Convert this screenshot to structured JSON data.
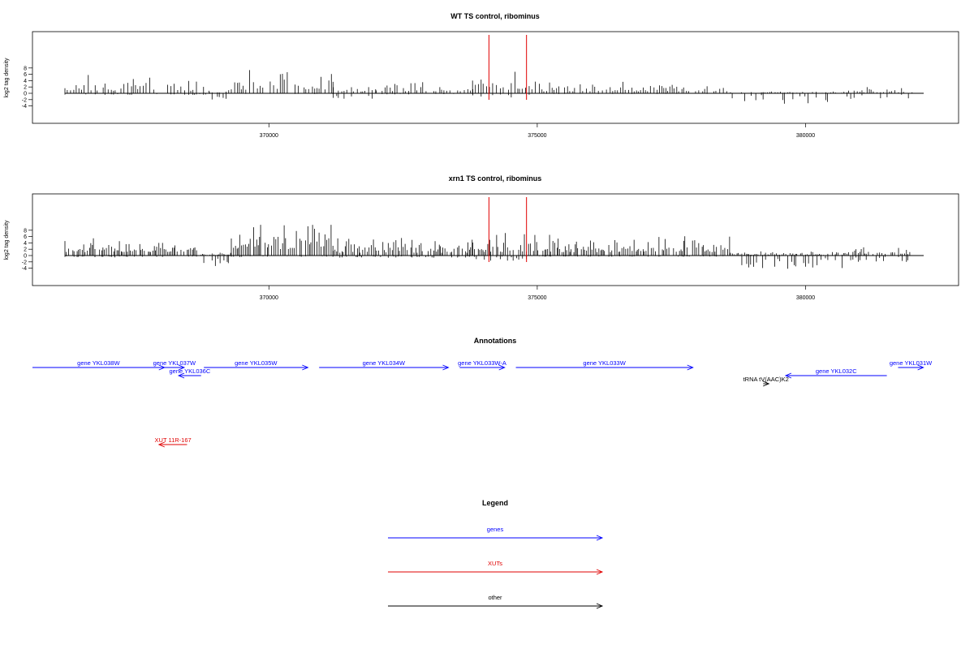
{
  "chart_data": [
    {
      "type": "bar",
      "title": "WT TS control, ribominus",
      "ylabel": "log2 tag density",
      "xlim": [
        366200,
        382200
      ],
      "ylim": [
        -5,
        10
      ],
      "yticks": [
        -4,
        -2,
        0,
        2,
        4,
        6,
        8
      ],
      "xticks": [
        370000,
        375000,
        380000
      ],
      "marker_color": "#e00000",
      "markers": [
        374100,
        374800
      ],
      "profile": {
        "base_spacing": 50,
        "segments": [
          {
            "x": [
              366200,
              368900
            ],
            "forward_amp": 3.2,
            "reverse_amp": 0.4
          },
          {
            "x": [
              368900,
              369300
            ],
            "forward_amp": 0.8,
            "reverse_amp": 1.8
          },
          {
            "x": [
              369300,
              371200
            ],
            "forward_amp": 4.5,
            "reverse_amp": 0.2
          },
          {
            "x": [
              371200,
              372000
            ],
            "forward_amp": 1.5,
            "reverse_amp": 1.5
          },
          {
            "x": [
              372000,
              373800
            ],
            "forward_amp": 2.5,
            "reverse_amp": 0.3
          },
          {
            "x": [
              373800,
              374900
            ],
            "forward_amp": 4.0,
            "reverse_amp": 1.2
          },
          {
            "x": [
              374900,
              378600
            ],
            "forward_amp": 2.4,
            "reverse_amp": 0.2
          },
          {
            "x": [
              378600,
              380800
            ],
            "forward_amp": 0.4,
            "reverse_amp": 2.8
          },
          {
            "x": [
              380800,
              382000
            ],
            "forward_amp": 1.2,
            "reverse_amp": 1.6
          }
        ]
      }
    },
    {
      "type": "bar",
      "title": "xrn1 TS control, ribominus",
      "ylabel": "log2 tag density",
      "xlim": [
        366200,
        382200
      ],
      "ylim": [
        -5,
        10
      ],
      "yticks": [
        -4,
        -2,
        0,
        2,
        4,
        6,
        8
      ],
      "xticks": [
        370000,
        375000,
        380000
      ],
      "marker_color": "#e00000",
      "markers": [
        374100,
        374800
      ],
      "profile": {
        "base_spacing": 30,
        "segments": [
          {
            "x": [
              366200,
              368700
            ],
            "forward_amp": 4.2,
            "reverse_amp": 0.5
          },
          {
            "x": [
              368700,
              369300
            ],
            "forward_amp": 0.6,
            "reverse_amp": 3.2
          },
          {
            "x": [
              369300,
              371200
            ],
            "forward_amp": 7.5,
            "reverse_amp": 0.4
          },
          {
            "x": [
              371200,
              373800
            ],
            "forward_amp": 3.5,
            "reverse_amp": 0.6
          },
          {
            "x": [
              373800,
              374900
            ],
            "forward_amp": 4.5,
            "reverse_amp": 1.5
          },
          {
            "x": [
              374900,
              378600
            ],
            "forward_amp": 4.2,
            "reverse_amp": 0.3
          },
          {
            "x": [
              378600,
              380800
            ],
            "forward_amp": 0.8,
            "reverse_amp": 3.5
          },
          {
            "x": [
              380800,
              382000
            ],
            "forward_amp": 1.8,
            "reverse_amp": 1.8
          }
        ]
      }
    }
  ],
  "annotations": {
    "title": "Annotations",
    "features": [
      {
        "label": "gene YKL038W",
        "category": "genes",
        "start": 366200,
        "end": 368550,
        "strand": "+",
        "row": 0
      },
      {
        "label": "gene YKL037W",
        "category": "genes",
        "start": 368550,
        "end": 368900,
        "strand": "+",
        "row": 0
      },
      {
        "label": "gene YKL035W",
        "category": "genes",
        "start": 369250,
        "end": 371100,
        "strand": "+",
        "row": 0
      },
      {
        "label": "gene YKL034W",
        "category": "genes",
        "start": 371300,
        "end": 373600,
        "strand": "+",
        "row": 0
      },
      {
        "label": "gene YKL033W-A",
        "category": "genes",
        "start": 373800,
        "end": 374600,
        "strand": "+",
        "row": 0
      },
      {
        "label": "gene YKL033W",
        "category": "genes",
        "start": 374800,
        "end": 377950,
        "strand": "+",
        "row": 0
      },
      {
        "label": "gene YKL031W",
        "category": "genes",
        "start": 381600,
        "end": 382050,
        "strand": "+",
        "row": 0
      },
      {
        "label": "gene YKL036C",
        "category": "genes",
        "start": 368800,
        "end": 369200,
        "strand": "-",
        "row": 1
      },
      {
        "label": "gene YKL032C",
        "category": "genes",
        "start": 379600,
        "end": 381400,
        "strand": "-",
        "row": 1
      },
      {
        "label": "tRNA tV(AAC)K2",
        "category": "other",
        "start": 379200,
        "end": 379300,
        "strand": "+",
        "row": 2
      },
      {
        "label": "XUT 11R-167",
        "category": "XUTs",
        "start": 368450,
        "end": 368950,
        "strand": "-",
        "row": 3
      }
    ]
  },
  "legend": {
    "title": "Legend",
    "items": [
      {
        "label": "genes",
        "color": "#0000ff"
      },
      {
        "label": "XUTs",
        "color": "#e00000"
      },
      {
        "label": "other",
        "color": "#000000"
      }
    ]
  },
  "colors": {
    "genes": "#0000ff",
    "XUTs": "#e00000",
    "other": "#000000"
  }
}
